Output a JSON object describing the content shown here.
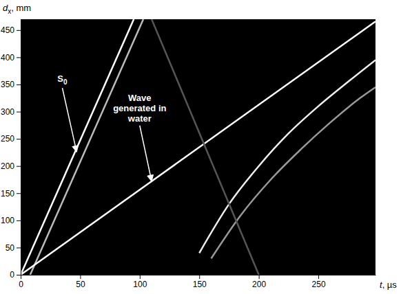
{
  "chart_data": {
    "type": "line",
    "ylabel": {
      "main": "d",
      "sub": "x",
      "rest": ", mm"
    },
    "xlabel": {
      "main": "t",
      "rest": ", µs"
    },
    "xlim": [
      0,
      298
    ],
    "ylim": [
      0,
      470
    ],
    "xticks": [
      0,
      50,
      100,
      150,
      200,
      250
    ],
    "yticks": [
      0,
      50,
      100,
      150,
      200,
      250,
      300,
      350,
      400,
      450
    ],
    "grid": false,
    "series": [
      {
        "color": "#ffffff",
        "x": [
          0,
          95
        ],
        "values": [
          0,
          470
        ]
      },
      {
        "color": "#bbbbbb",
        "x": [
          8,
          103
        ],
        "values": [
          0,
          470
        ]
      },
      {
        "color": "#ffffff",
        "x": [
          0,
          298
        ],
        "values": [
          0,
          466
        ]
      },
      {
        "color": "#eeeeee",
        "x": [
          150,
          175,
          200,
          225,
          250,
          275,
          298
        ],
        "values": [
          40,
          130,
          200,
          260,
          310,
          355,
          395
        ]
      },
      {
        "color": "#999999",
        "x": [
          160,
          185,
          210,
          235,
          260,
          285,
          298
        ],
        "values": [
          30,
          110,
          175,
          230,
          280,
          325,
          345
        ]
      },
      {
        "color": "#555555",
        "x": [
          110,
          200
        ],
        "values": [
          470,
          0
        ]
      }
    ],
    "annotations": [
      {
        "text": "S",
        "sub": "0",
        "x": 35,
        "y": 355,
        "arrow_x": 47,
        "arrow_y": 226
      },
      {
        "text": "Wave generated in water",
        "x": 100,
        "y": 320,
        "arrow_x": 110,
        "arrow_y": 172
      }
    ]
  }
}
